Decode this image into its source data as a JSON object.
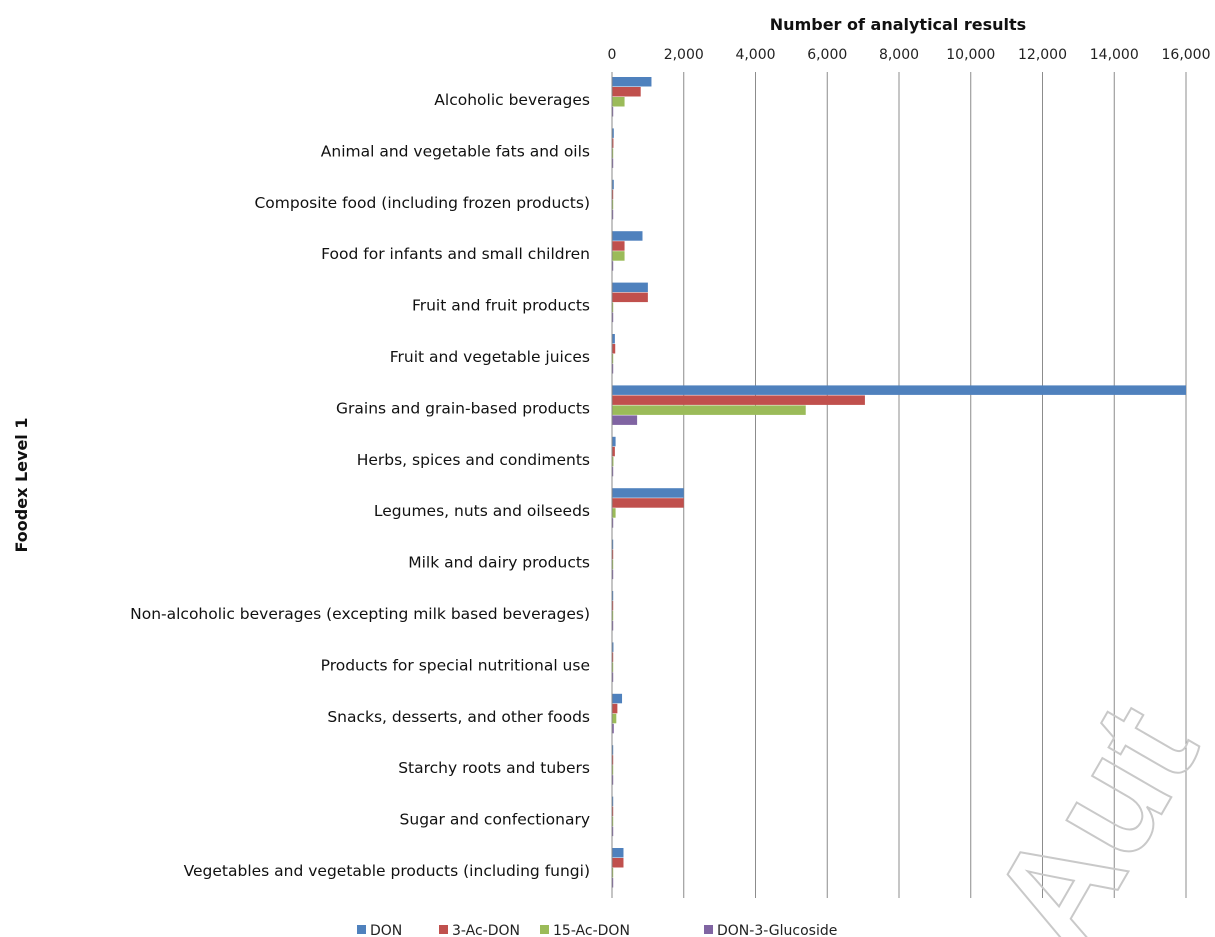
{
  "chart_data": {
    "type": "bar",
    "orientation": "horizontal",
    "xlabel": "Number of analytical results",
    "ylabel": "Foodex Level 1",
    "xlim": [
      0,
      16000
    ],
    "xticks": [
      "0",
      "2,000",
      "4,000",
      "6,000",
      "8,000",
      "10,000",
      "12,000",
      "14,000",
      "16,000"
    ],
    "grid": true,
    "legend_position": "bottom",
    "categories": [
      "Alcoholic beverages",
      "Animal and vegetable fats and oils",
      "Composite food (including frozen products)",
      "Food for infants and small children",
      "Fruit and fruit products",
      "Fruit and vegetable juices",
      "Grains and grain-based products",
      "Herbs, spices and condiments",
      "Legumes, nuts and oilseeds",
      "Milk and dairy products",
      "Non-alcoholic beverages (excepting milk based beverages)",
      "Products for special nutritional use",
      "Snacks, desserts, and other foods",
      "Starchy roots and tubers",
      "Sugar and confectionary",
      "Vegetables and vegetable products (including fungi)"
    ],
    "series": [
      {
        "name": "DON",
        "color": "#4f81bd",
        "values": [
          1100,
          50,
          50,
          850,
          1000,
          80,
          16000,
          100,
          2000,
          30,
          30,
          40,
          280,
          30,
          30,
          320
        ]
      },
      {
        "name": "3-Ac-DON",
        "color": "#c0504d",
        "values": [
          800,
          40,
          20,
          350,
          1000,
          90,
          7050,
          80,
          2000,
          30,
          20,
          30,
          150,
          30,
          20,
          320
        ]
      },
      {
        "name": "15-Ac-DON",
        "color": "#9bbb59",
        "values": [
          350,
          20,
          20,
          350,
          30,
          20,
          5400,
          40,
          100,
          20,
          10,
          20,
          120,
          20,
          20,
          20
        ]
      },
      {
        "name": "DON-3-Glucoside",
        "color": "#8064a2",
        "values": [
          20,
          10,
          10,
          20,
          10,
          10,
          700,
          10,
          10,
          10,
          10,
          10,
          50,
          10,
          10,
          10
        ]
      }
    ]
  },
  "watermark_text": "Aut"
}
